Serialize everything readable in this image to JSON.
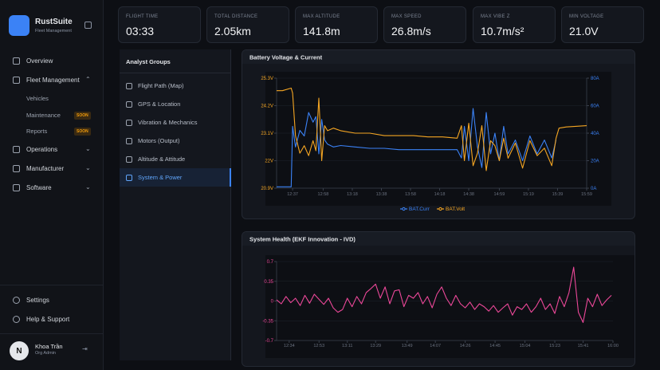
{
  "sidebar": {
    "brand": "RustSuite",
    "brand_sub": "Fleet Management",
    "nav": [
      "Overview",
      "Fleet Management",
      "Operations",
      "Manufacturer",
      "Software"
    ],
    "sub_nav": [
      {
        "label": "Vehicles"
      },
      {
        "label": "Maintenance",
        "badge": "SOON"
      },
      {
        "label": "Reports",
        "badge": "SOON"
      }
    ],
    "footer": [
      "Settings",
      "Help & Support"
    ],
    "user": {
      "initial": "N",
      "name": "Khoa Trần",
      "role": "Org Admin"
    }
  },
  "stats": [
    {
      "label": "FLIGHT TIME",
      "value": "03:33"
    },
    {
      "label": "TOTAL DISTANCE",
      "value": "2.05km"
    },
    {
      "label": "MAX ALTITUDE",
      "value": "141.8m"
    },
    {
      "label": "MAX SPEED",
      "value": "26.8m/s"
    },
    {
      "label": "MAX VIBE Z",
      "value": "10.7m/s²"
    },
    {
      "label": "MIN VOLTAGE",
      "value": "21.0V"
    }
  ],
  "groups": {
    "title": "Analyst Groups",
    "items": [
      "Flight Path (Map)",
      "GPS & Location",
      "Vibration & Mechanics",
      "Motors (Output)",
      "Altitude & Attitude",
      "System & Power"
    ],
    "active": 5
  },
  "charts": [
    {
      "type": "line",
      "title": "Battery Voltage & Current",
      "grid": true,
      "legend": "bottom",
      "x": [
        "12:26",
        "12:30",
        "12:36",
        "12:37",
        "12:39",
        "12:42",
        "12:45",
        "12:48",
        "12:51",
        "12:53",
        "12:55",
        "12:57",
        "12:59",
        "13:01",
        "13:05",
        "13:10",
        "13:20",
        "13:30",
        "13:40",
        "13:50",
        "14:00",
        "14:10",
        "14:20",
        "14:30",
        "14:33",
        "14:35",
        "14:38",
        "14:41",
        "14:44",
        "14:47",
        "14:50",
        "14:53",
        "14:56",
        "14:59",
        "15:02",
        "15:05",
        "15:10",
        "15:15",
        "15:20",
        "15:25",
        "15:30",
        "15:35",
        "15:38",
        "15:40",
        "15:45",
        "15:59"
      ],
      "xlim": [
        "12:26",
        "15:59"
      ],
      "xticks": [
        "12:37",
        "12:58",
        "13:18",
        "13:38",
        "13:58",
        "14:18",
        "14:38",
        "14:59",
        "15:19",
        "15:39",
        "15:59"
      ],
      "ylim": [
        20.9,
        25.3
      ],
      "yticks": [
        {
          "value": 20.9,
          "label": "20.9V"
        },
        {
          "value": 22,
          "label": "22V"
        },
        {
          "value": 23.1,
          "label": "23.1V"
        },
        {
          "value": 24.2,
          "label": "24.2V"
        },
        {
          "value": 25.3,
          "label": "25.3V"
        }
      ],
      "y2lim": [
        0,
        80
      ],
      "y2ticks": [
        {
          "value": 0,
          "label": "0A"
        },
        {
          "value": 20,
          "label": "20A"
        },
        {
          "value": 40,
          "label": "40A"
        },
        {
          "value": 60,
          "label": "60A"
        },
        {
          "value": 80,
          "label": "80A"
        }
      ],
      "series": [
        {
          "name": "BAT.Curr",
          "color": "#3b82f6",
          "axis": "y2",
          "values": [
            1,
            1,
            1,
            45,
            30,
            42,
            38,
            55,
            48,
            52,
            25,
            50,
            35,
            32,
            30,
            31,
            30,
            29,
            29,
            28,
            28,
            28,
            28,
            28,
            22,
            45,
            20,
            58,
            30,
            15,
            55,
            25,
            40,
            20,
            45,
            25,
            35,
            20,
            38,
            25,
            35,
            22,
            35,
            null,
            null,
            null
          ]
        },
        {
          "name": "BAT.Volt",
          "color": "#f5a623",
          "values": [
            24.8,
            24.8,
            24.9,
            24.7,
            23.0,
            22.3,
            22.6,
            22.2,
            22.8,
            22.4,
            24.5,
            22.0,
            23.4,
            23.2,
            23.3,
            23.2,
            23.1,
            23.1,
            23.0,
            23.0,
            23.0,
            22.95,
            22.95,
            22.9,
            23.4,
            22.0,
            23.5,
            21.8,
            22.3,
            23.4,
            21.6,
            22.8,
            22.6,
            22.0,
            22.9,
            22.1,
            22.7,
            21.7,
            22.8,
            22.2,
            22.5,
            21.8,
            22.9,
            23.3,
            23.35,
            23.4
          ]
        }
      ]
    },
    {
      "type": "line",
      "title": "System Health (EKF Innovation - IVD)",
      "grid": true,
      "x": [
        "12:26",
        "12:29",
        "12:32",
        "12:35",
        "12:38",
        "12:41",
        "12:44",
        "12:47",
        "12:50",
        "12:53",
        "12:56",
        "12:59",
        "13:02",
        "13:05",
        "13:08",
        "13:11",
        "13:14",
        "13:17",
        "13:20",
        "13:23",
        "13:26",
        "13:29",
        "13:32",
        "13:35",
        "13:38",
        "13:41",
        "13:44",
        "13:47",
        "13:50",
        "13:53",
        "13:56",
        "13:59",
        "14:02",
        "14:05",
        "14:08",
        "14:11",
        "14:14",
        "14:17",
        "14:20",
        "14:23",
        "14:26",
        "14:29",
        "14:32",
        "14:35",
        "14:38",
        "14:41",
        "14:44",
        "14:47",
        "14:50",
        "14:53",
        "14:56",
        "14:59",
        "15:02",
        "15:05",
        "15:08",
        "15:11",
        "15:14",
        "15:17",
        "15:20",
        "15:23",
        "15:26",
        "15:29",
        "15:32",
        "15:35",
        "15:38",
        "15:41",
        "15:44",
        "15:47",
        "15:50",
        "15:53",
        "15:56",
        "15:59"
      ],
      "xlim": [
        "12:26",
        "16:00"
      ],
      "xticks": [
        "12:34",
        "12:53",
        "13:11",
        "13:29",
        "13:49",
        "14:07",
        "14:26",
        "14:45",
        "15:04",
        "15:23",
        "15:41",
        "16:00"
      ],
      "ylim": [
        -0.7,
        0.7
      ],
      "yticks": [
        -0.7,
        -0.35,
        0,
        0.35,
        0.7
      ],
      "series": [
        {
          "name": "IVD",
          "color": "#ec4899",
          "values": [
            0.02,
            -0.05,
            0.08,
            -0.03,
            0.05,
            -0.08,
            0.1,
            -0.04,
            0.12,
            0.03,
            -0.06,
            0.05,
            -0.12,
            -0.2,
            -0.15,
            0.05,
            -0.1,
            0.08,
            -0.05,
            0.15,
            0.22,
            0.3,
            0.05,
            0.25,
            -0.05,
            0.18,
            0.2,
            -0.1,
            0.1,
            0.05,
            0.15,
            -0.05,
            0.08,
            -0.12,
            0.12,
            0.25,
            0.05,
            -0.08,
            0.1,
            -0.05,
            -0.12,
            -0.02,
            -0.15,
            -0.05,
            -0.1,
            -0.18,
            -0.08,
            -0.2,
            -0.12,
            -0.05,
            -0.25,
            -0.1,
            -0.15,
            -0.05,
            -0.2,
            -0.1,
            0.05,
            -0.15,
            -0.05,
            -0.22,
            0.08,
            -0.1,
            0.15,
            0.6,
            -0.2,
            -0.38,
            0.05,
            -0.1,
            0.12,
            -0.08,
            0.02,
            0.1
          ]
        }
      ]
    }
  ]
}
